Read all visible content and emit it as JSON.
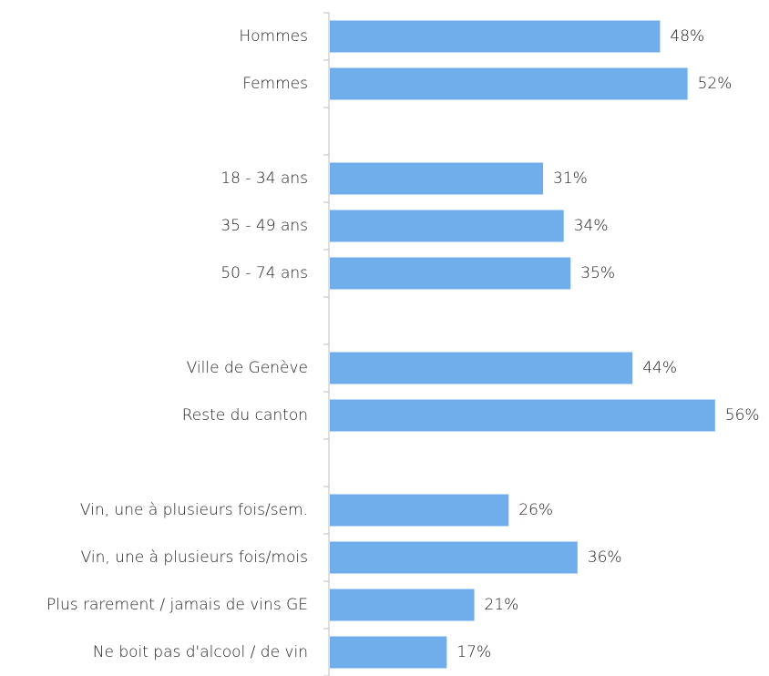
{
  "chart_data": {
    "type": "hbar",
    "categories": [
      "Hommes",
      "Femmes",
      null,
      "18 - 34 ans",
      "35 - 49 ans",
      "50 - 74 ans",
      null,
      "Ville de Genève",
      "Reste du canton",
      null,
      "Vin, une à plusieurs fois/sem.",
      "Vin, une à plusieurs fois/mois",
      "Plus rarement / jamais de vins GE",
      "Ne boit pas d'alcool / de vin"
    ],
    "values": [
      48,
      52,
      null,
      31,
      34,
      35,
      null,
      44,
      56,
      null,
      26,
      36,
      21,
      17
    ],
    "value_labels": [
      "48%",
      "52%",
      null,
      "31%",
      "34%",
      "35%",
      null,
      "44%",
      "56%",
      null,
      "26%",
      "36%",
      "21%",
      "17%"
    ],
    "color": "#6faeea"
  }
}
